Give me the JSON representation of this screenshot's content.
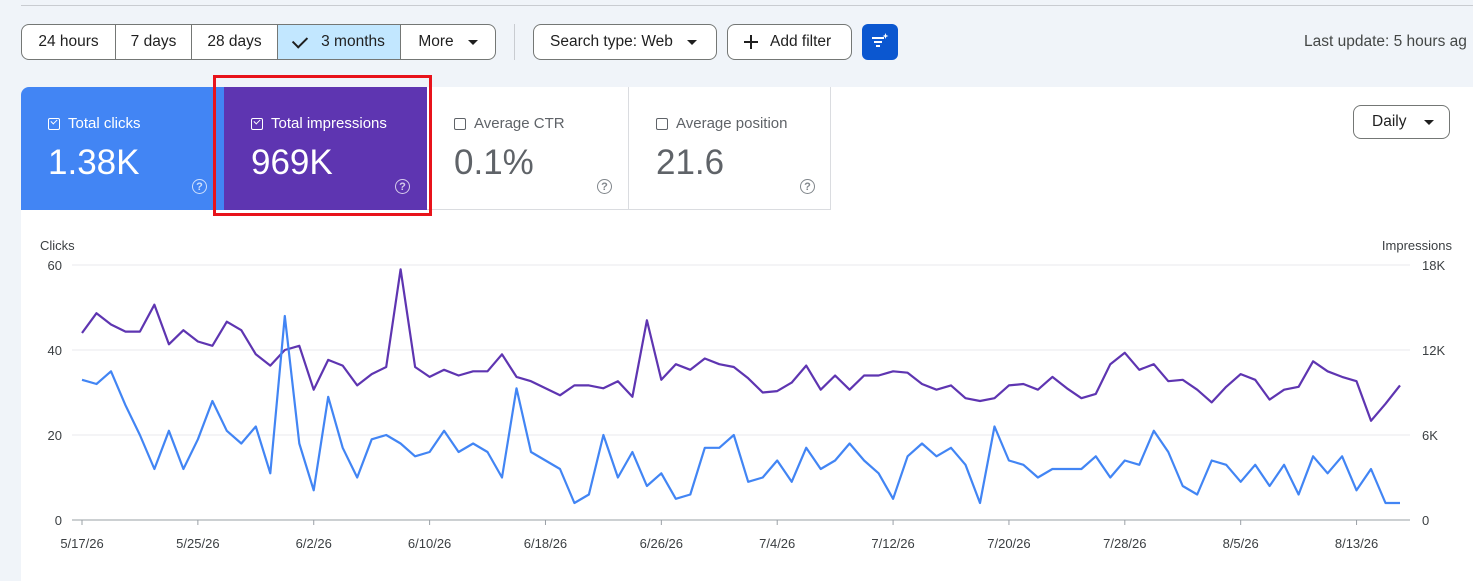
{
  "toolbar": {
    "date_ranges": [
      "24 hours",
      "7 days",
      "28 days",
      "3 months",
      "More"
    ],
    "selected_range": "3 months",
    "search_type": "Search type: Web",
    "add_filter": "Add filter",
    "last_update": "Last update: 5 hours ag"
  },
  "metrics": [
    {
      "label": "Total clicks",
      "value": "1.38K",
      "checked": true,
      "color": "#4285f4"
    },
    {
      "label": "Total impressions",
      "value": "969K",
      "checked": true,
      "color": "#5e35b1"
    },
    {
      "label": "Average CTR",
      "value": "0.1%",
      "checked": false
    },
    {
      "label": "Average position",
      "value": "21.6",
      "checked": false
    }
  ],
  "granularity": "Daily",
  "colors": {
    "clicks": "#4285f4",
    "impressions": "#5e35b1",
    "highlight": "#e8131b",
    "filter_button": "#0b57d0",
    "selected_segment": "#c2e7ff"
  },
  "icons": {
    "selected_check": "check-icon",
    "dropdown": "caret-down-icon",
    "add": "plus-icon",
    "filter": "filter-sparkle-icon",
    "help": "help-circle-icon"
  },
  "chart_data": {
    "type": "line",
    "ylabel_left": "Clicks",
    "ylabel_right": "Impressions",
    "left_ticks": [
      "0",
      "20",
      "40",
      "60"
    ],
    "right_ticks": [
      "0",
      "6K",
      "12K",
      "18K"
    ],
    "ylim_left": [
      0,
      60
    ],
    "ylim_right": [
      0,
      18000
    ],
    "x_tick_labels": [
      "5/17/26",
      "5/25/26",
      "6/2/26",
      "6/10/26",
      "6/18/26",
      "6/26/26",
      "7/4/26",
      "7/12/26",
      "7/20/26",
      "7/28/26",
      "8/5/26",
      "8/13/26"
    ],
    "x_start": "2026-05-17",
    "grid": "horizontal",
    "series": [
      {
        "name": "Clicks",
        "axis": "left",
        "values": [
          33,
          32,
          35,
          27,
          20,
          12,
          21,
          12,
          19,
          28,
          21,
          18,
          22,
          11,
          48,
          18,
          7,
          29,
          17,
          10,
          19,
          20,
          18,
          15,
          16,
          21,
          16,
          18,
          16,
          10,
          31,
          16,
          14,
          12,
          4,
          6,
          20,
          10,
          16,
          8,
          11,
          5,
          6,
          17,
          17,
          20,
          9,
          10,
          14,
          9,
          17,
          12,
          14,
          18,
          14,
          11,
          5,
          15,
          18,
          15,
          17,
          13,
          4,
          22,
          14,
          13,
          10,
          12,
          12,
          12,
          15,
          10,
          14,
          13,
          21,
          16,
          8,
          6,
          14,
          13,
          9,
          13,
          8,
          13,
          6,
          15,
          11,
          15,
          7,
          12,
          4,
          4
        ]
      },
      {
        "name": "Impressions",
        "axis": "right",
        "values": [
          13200,
          14600,
          13800,
          13300,
          13300,
          15200,
          12400,
          13400,
          12600,
          12300,
          14000,
          13400,
          11700,
          10900,
          12000,
          12300,
          9200,
          11300,
          10900,
          9500,
          10300,
          10800,
          17700,
          10800,
          10100,
          10600,
          10200,
          10500,
          10500,
          11700,
          10100,
          9800,
          9300,
          8800,
          9500,
          9500,
          9300,
          9800,
          8700,
          14100,
          9900,
          11000,
          10600,
          11400,
          11000,
          10800,
          10000,
          9000,
          9100,
          9700,
          10900,
          9200,
          10200,
          9200,
          10200,
          10200,
          10500,
          10400,
          9600,
          9200,
          9500,
          8600,
          8400,
          8600,
          9500,
          9600,
          9200,
          10100,
          9300,
          8600,
          8900,
          11000,
          11800,
          10600,
          11000,
          9800,
          9900,
          9200,
          8300,
          9400,
          10300,
          9900,
          8500,
          9200,
          9400,
          11200,
          10500,
          10100,
          9800,
          7000,
          8200,
          9500
        ]
      }
    ]
  }
}
